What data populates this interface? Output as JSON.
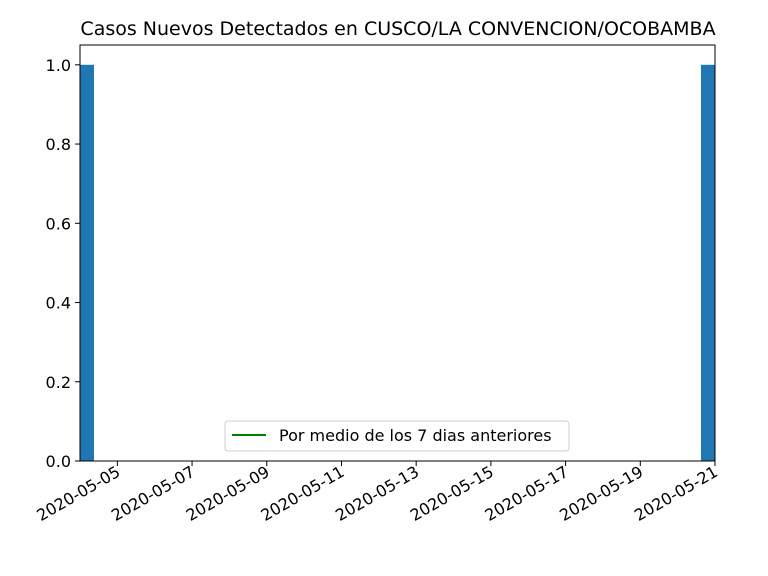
{
  "chart_data": {
    "type": "bar",
    "title": "Casos Nuevos Detectados en CUSCO/LA CONVENCION/OCOBAMBA",
    "xlabel": "",
    "ylabel": "",
    "x_start": "2020-05-04",
    "x_end": "2020-05-21",
    "xlim": [
      "2020-05-04",
      "2020-05-21"
    ],
    "ylim": [
      0,
      1.05
    ],
    "bars": [
      {
        "date": "2020-05-04",
        "value": 1
      },
      {
        "date": "2020-05-21",
        "value": 1
      }
    ],
    "yticks": [
      "0.0",
      "0.2",
      "0.4",
      "0.6",
      "0.8",
      "1.0"
    ],
    "xticks": [
      "2020-05-05",
      "2020-05-07",
      "2020-05-09",
      "2020-05-11",
      "2020-05-13",
      "2020-05-15",
      "2020-05-17",
      "2020-05-19",
      "2020-05-21"
    ],
    "series": [
      {
        "name": "Por medio de los 7 dias anteriores",
        "color": "#008000",
        "values": []
      }
    ],
    "legend": {
      "placement": "lower-center"
    },
    "bar_color": "#1f77b4",
    "grid": false
  }
}
